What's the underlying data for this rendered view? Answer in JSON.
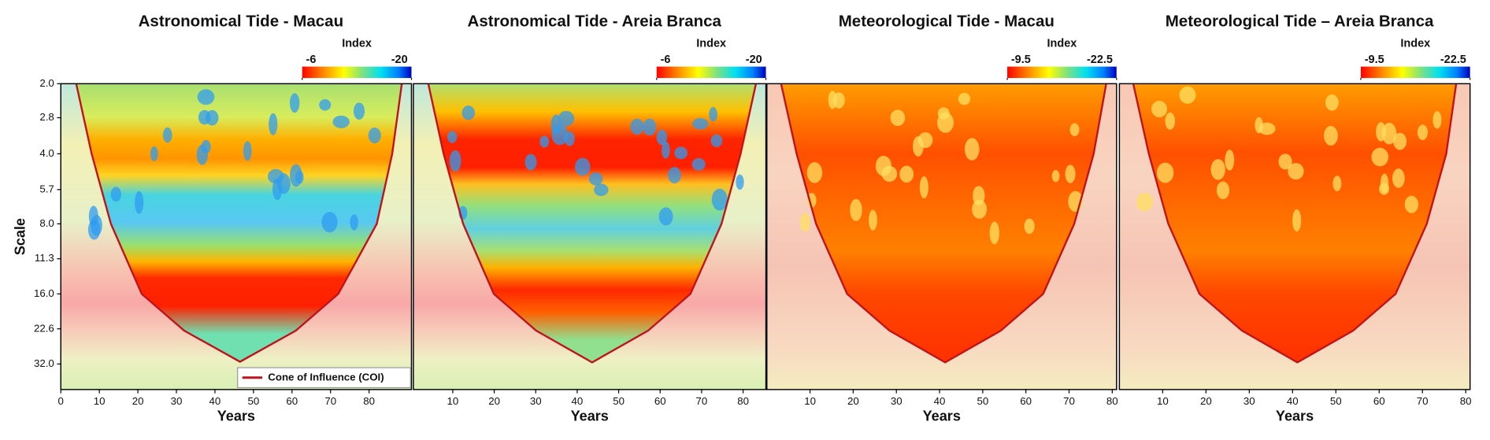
{
  "chart_data": [
    {
      "type": "heatmap",
      "title": "Astronomical Tide - Macau",
      "colorbar": {
        "label": "Index",
        "ticks": [
          -6,
          -20
        ]
      },
      "xlim": [
        0,
        91
      ],
      "xticks": [
        0,
        10,
        20,
        30,
        40,
        50,
        60,
        70,
        80
      ],
      "xlabel": "Years",
      "ylabel": "Scale",
      "ylim": [
        2,
        41.2
      ],
      "y_log": true,
      "y_reversed": true,
      "yticks": [
        {
          "value": 2,
          "label": "2.0"
        },
        2.8,
        {
          "value": 4,
          "label": "4.0"
        },
        5.7,
        {
          "value": 8,
          "label": "8.0"
        },
        11.3,
        {
          "value": 16,
          "label": "16.0"
        },
        22.6,
        {
          "value": 32,
          "label": "32.0"
        }
      ],
      "series": [
        {
          "name": "Cone of Influence (COI)",
          "color": "#c0141c",
          "x": [
            4,
            8,
            13,
            21,
            32,
            46.5,
            61,
            72,
            82,
            86,
            88.5
          ],
          "values": [
            2,
            4,
            8,
            16,
            23,
            31.3,
            23,
            16,
            8,
            4,
            2
          ]
        }
      ],
      "legend": "lower right"
    },
    {
      "type": "heatmap",
      "title": "Astronomical Tide - Areia Branca",
      "colorbar": {
        "label": "Index",
        "ticks": [
          -6,
          -20
        ]
      },
      "xlim": [
        0.5,
        85.5
      ],
      "xticks": [
        10,
        20,
        30,
        40,
        50,
        60,
        70,
        80
      ],
      "xlabel": "Years",
      "ylim": [
        2,
        41.2
      ],
      "y_log": true,
      "y_reversed": true,
      "series": [
        {
          "color": "#c0141c",
          "x": [
            4.1,
            7.8,
            12.5,
            19.9,
            30.1,
            43.6,
            57.1,
            67.3,
            74.8,
            79.4,
            83.1
          ],
          "values": [
            2,
            4,
            8,
            16,
            23,
            31.5,
            23,
            16,
            8,
            4,
            2
          ]
        }
      ]
    },
    {
      "type": "heatmap",
      "title": "Meteorological Tide - Macau",
      "colorbar": {
        "label": "Index",
        "ticks": [
          -9.5,
          -22.5
        ]
      },
      "xlim": [
        0,
        81
      ],
      "xticks": [
        10,
        20,
        30,
        40,
        50,
        60,
        70,
        80
      ],
      "xlabel": "Years",
      "ylim": [
        2,
        41.2
      ],
      "y_log": true,
      "y_reversed": true,
      "series": [
        {
          "color": "#c0141c",
          "x": [
            3.3,
            6.9,
            11.4,
            18.6,
            28.4,
            41.3,
            54.2,
            64,
            71.2,
            75.7,
            78.6
          ],
          "values": [
            2,
            4,
            8,
            16,
            23,
            31.5,
            23,
            16,
            8,
            4,
            2
          ]
        }
      ]
    },
    {
      "type": "heatmap",
      "title": "Meteorological Tide – Areia Branca",
      "colorbar": {
        "label": "Index",
        "ticks": [
          -9.5,
          -22.5
        ]
      },
      "xlim": [
        0,
        81
      ],
      "xticks": [
        10,
        20,
        30,
        40,
        50,
        60,
        70,
        80
      ],
      "xlabel": "Years",
      "ylim": [
        2,
        41.2
      ],
      "y_log": true,
      "y_reversed": true,
      "series": [
        {
          "color": "#c0141c",
          "x": [
            3.2,
            6.8,
            11.3,
            18.5,
            28.3,
            41.1,
            54,
            63.8,
            71,
            75.5,
            77.8
          ],
          "values": [
            2,
            4,
            8,
            16,
            23,
            31.5,
            23,
            16,
            8,
            4,
            2
          ]
        }
      ]
    }
  ]
}
